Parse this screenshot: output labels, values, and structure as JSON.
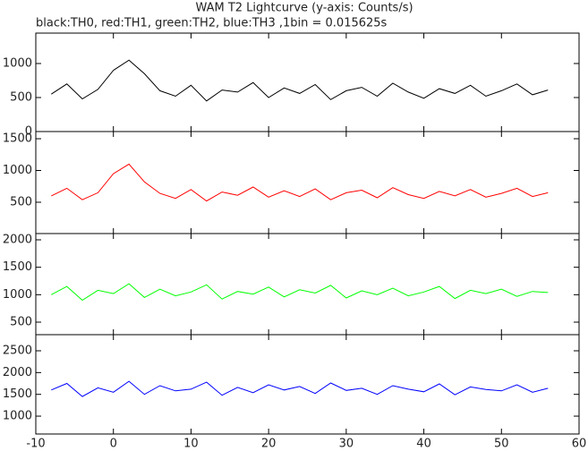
{
  "chart_data": [
    {
      "type": "line",
      "title": "WAM T2 Lightcurve (y-axis: Counts/s)",
      "subtitle": "black:TH0, red:TH1, green:TH2, blue:TH3 ,1bin = 0.015625s",
      "color": "#000000",
      "x": [
        -8,
        -6,
        -4,
        -2,
        0,
        2,
        4,
        6,
        8,
        10,
        12,
        14,
        16,
        18,
        20,
        22,
        24,
        26,
        28,
        30,
        32,
        34,
        36,
        38,
        40,
        42,
        44,
        46,
        48,
        50,
        52,
        54,
        56
      ],
      "values": [
        550,
        700,
        480,
        620,
        900,
        1050,
        850,
        600,
        520,
        680,
        450,
        610,
        580,
        720,
        500,
        640,
        560,
        690,
        470,
        600,
        650,
        520,
        710,
        580,
        490,
        630,
        560,
        680,
        520,
        600,
        700,
        540,
        610
      ],
      "xlim": [
        -10,
        60
      ],
      "ylim": [
        0,
        1447
      ],
      "yticks": [
        0,
        500,
        1000
      ]
    },
    {
      "type": "line",
      "color": "#ff0000",
      "x": [
        -8,
        -6,
        -4,
        -2,
        0,
        2,
        4,
        6,
        8,
        10,
        12,
        14,
        16,
        18,
        20,
        22,
        24,
        26,
        28,
        30,
        32,
        34,
        36,
        38,
        40,
        42,
        44,
        46,
        48,
        50,
        52,
        54,
        56
      ],
      "values": [
        600,
        720,
        540,
        650,
        950,
        1100,
        820,
        640,
        560,
        700,
        520,
        660,
        610,
        740,
        580,
        680,
        590,
        710,
        540,
        650,
        690,
        570,
        730,
        620,
        560,
        670,
        600,
        700,
        580,
        640,
        720,
        590,
        650
      ],
      "xlim": [
        -10,
        60
      ],
      "ylim": [
        7,
        1613
      ],
      "yticks": [
        500,
        1000,
        1500
      ]
    },
    {
      "type": "line",
      "color": "#00ff00",
      "x": [
        -8,
        -6,
        -4,
        -2,
        0,
        2,
        4,
        6,
        8,
        10,
        12,
        14,
        16,
        18,
        20,
        22,
        24,
        26,
        28,
        30,
        32,
        34,
        36,
        38,
        40,
        42,
        44,
        46,
        48,
        50,
        52,
        54,
        56
      ],
      "values": [
        1000,
        1150,
        900,
        1080,
        1020,
        1200,
        950,
        1100,
        980,
        1050,
        1180,
        920,
        1060,
        1010,
        1140,
        960,
        1090,
        1030,
        1170,
        940,
        1070,
        1000,
        1120,
        980,
        1050,
        1150,
        930,
        1080,
        1020,
        1100,
        970,
        1060,
        1040
      ],
      "xlim": [
        -10,
        60
      ],
      "ylim": [
        272,
        2114
      ],
      "yticks": [
        500,
        1000,
        1500,
        2000
      ]
    },
    {
      "type": "line",
      "color": "#0000ff",
      "x": [
        -8,
        -6,
        -4,
        -2,
        0,
        2,
        4,
        6,
        8,
        10,
        12,
        14,
        16,
        18,
        20,
        22,
        24,
        26,
        28,
        30,
        32,
        34,
        36,
        38,
        40,
        42,
        44,
        46,
        48,
        50,
        52,
        54,
        56
      ],
      "values": [
        1600,
        1750,
        1450,
        1650,
        1550,
        1800,
        1500,
        1700,
        1580,
        1620,
        1780,
        1480,
        1660,
        1540,
        1720,
        1600,
        1680,
        1520,
        1760,
        1590,
        1640,
        1500,
        1700,
        1620,
        1560,
        1740,
        1490,
        1670,
        1610,
        1580,
        1720,
        1550,
        1640
      ],
      "xlim": [
        -10,
        60
      ],
      "ylim": [
        590,
        2870
      ],
      "yticks": [
        1000,
        1500,
        2000,
        2500
      ],
      "xticks": [
        -10,
        0,
        10,
        20,
        30,
        40,
        50,
        60
      ]
    }
  ]
}
